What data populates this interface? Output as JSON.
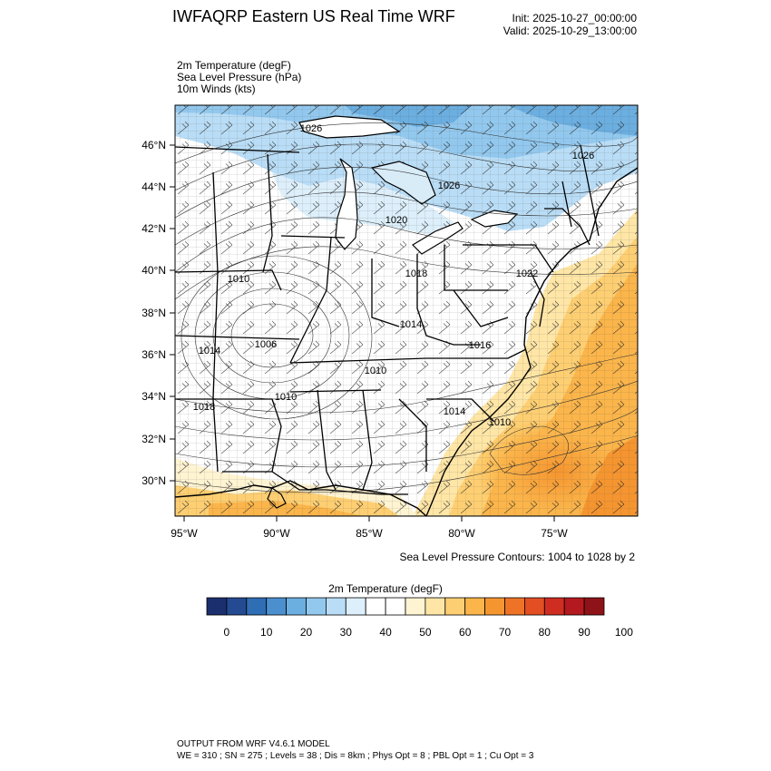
{
  "header": {
    "title": "IWFAQRP Eastern US Real Time WRF",
    "init": "Init: 2025-10-27_00:00:00",
    "valid": "Valid: 2025-10-29_13:00:00"
  },
  "fields": {
    "temp": "2m Temperature   (degF)",
    "slp": "Sea Level Pressure   (hPa)",
    "wind": "10m Winds   (kts)"
  },
  "map": {
    "lat_labels": [
      "46°N",
      "44°N",
      "42°N",
      "40°N",
      "38°N",
      "36°N",
      "34°N",
      "32°N",
      "30°N"
    ],
    "lon_labels": [
      "95°W",
      "90°W",
      "85°W",
      "80°W",
      "75°W"
    ],
    "pressure_labels": [
      "1026",
      "1026",
      "1026",
      "1020",
      "1018",
      "1022",
      "1010",
      "1014",
      "1006",
      "1014",
      "1016",
      "1010",
      "1018",
      "1010",
      "1014",
      "1010"
    ],
    "contours_note": "Sea Level Pressure Contours: 1004 to 1028 by 2"
  },
  "colorbar": {
    "title": "2m Temperature  (degF)",
    "colors": [
      "#1b2f6e",
      "#244a91",
      "#2f6db5",
      "#4b8fcf",
      "#6baee0",
      "#92c8ee",
      "#b9ddf6",
      "#ddeffb",
      "#ffffff",
      "#ffffff",
      "#fff4d2",
      "#ffe6a6",
      "#fecf72",
      "#fbb54a",
      "#f5952f",
      "#ee7326",
      "#e34e23",
      "#cf2d21",
      "#b3191e",
      "#8e1318"
    ],
    "tick_labels": [
      "0",
      "10",
      "20",
      "30",
      "40",
      "50",
      "60",
      "70",
      "80",
      "90",
      "100"
    ]
  },
  "footer": {
    "line1": "OUTPUT FROM WRF V4.6.1 MODEL",
    "line2": "WE = 310 ; SN = 275 ; Levels = 38 ; Dis = 8km ; Phys Opt = 8 ; PBL Opt = 1 ; Cu Opt = 3"
  }
}
